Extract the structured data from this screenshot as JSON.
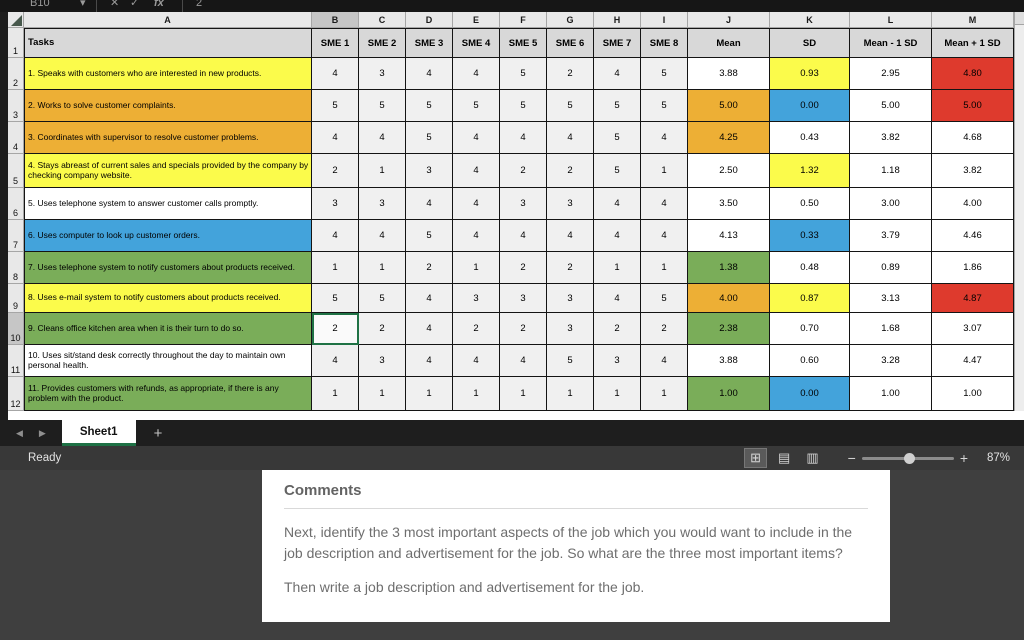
{
  "formula_bar": {
    "name_box": "B10",
    "caret_icon": "▾",
    "cancel_icon": "✕",
    "enter_icon": "✓",
    "fx_icon": "fx",
    "formula_value": "2"
  },
  "grid": {
    "column_letters": [
      "A",
      "B",
      "C",
      "D",
      "E",
      "F",
      "G",
      "H",
      "I",
      "J",
      "K",
      "L",
      "M"
    ],
    "active_column": "B",
    "active_row": "10",
    "header_row": {
      "row_num": "1",
      "tasks_label": "Tasks",
      "columns": [
        "SME 1",
        "SME 2",
        "SME 3",
        "SME 4",
        "SME 5",
        "SME 6",
        "SME 7",
        "SME 8",
        "Mean",
        "SD",
        "Mean - 1 SD",
        "Mean + 1 SD"
      ]
    },
    "rows": [
      {
        "row_num": "2",
        "task": "1. Speaks with customers who are interested in new products.",
        "task_bg": "yellow",
        "values": [
          "4",
          "3",
          "4",
          "4",
          "5",
          "2",
          "4",
          "5"
        ],
        "mean": "3.88",
        "sd": "0.93",
        "mean_minus_sd": "2.95",
        "mean_plus_sd": "4.80",
        "mean_bg": "",
        "sd_bg": "yellow",
        "plus_bg": "red"
      },
      {
        "row_num": "3",
        "task": "2. Works to solve customer complaints.",
        "task_bg": "orange",
        "values": [
          "5",
          "5",
          "5",
          "5",
          "5",
          "5",
          "5",
          "5"
        ],
        "mean": "5.00",
        "sd": "0.00",
        "mean_minus_sd": "5.00",
        "mean_plus_sd": "5.00",
        "mean_bg": "orange",
        "sd_bg": "blue",
        "plus_bg": "red"
      },
      {
        "row_num": "4",
        "task": "3. Coordinates with supervisor to resolve customer problems.",
        "task_bg": "orange",
        "values": [
          "4",
          "4",
          "5",
          "4",
          "4",
          "4",
          "5",
          "4"
        ],
        "mean": "4.25",
        "sd": "0.43",
        "mean_minus_sd": "3.82",
        "mean_plus_sd": "4.68",
        "mean_bg": "orange",
        "sd_bg": "",
        "plus_bg": ""
      },
      {
        "row_num": "5",
        "task": "4. Stays abreast of current sales and specials provided by the company by checking company website.",
        "task_bg": "yellow",
        "values": [
          "2",
          "1",
          "3",
          "4",
          "2",
          "2",
          "5",
          "1"
        ],
        "mean": "2.50",
        "sd": "1.32",
        "mean_minus_sd": "1.18",
        "mean_plus_sd": "3.82",
        "mean_bg": "",
        "sd_bg": "yellow",
        "plus_bg": ""
      },
      {
        "row_num": "6",
        "task": "5. Uses telephone system to answer customer calls promptly.",
        "task_bg": "",
        "values": [
          "3",
          "3",
          "4",
          "4",
          "3",
          "3",
          "4",
          "4"
        ],
        "mean": "3.50",
        "sd": "0.50",
        "mean_minus_sd": "3.00",
        "mean_plus_sd": "4.00",
        "mean_bg": "",
        "sd_bg": "",
        "plus_bg": ""
      },
      {
        "row_num": "7",
        "task": "6. Uses computer to look up customer orders.",
        "task_bg": "blue",
        "values": [
          "4",
          "4",
          "5",
          "4",
          "4",
          "4",
          "4",
          "4"
        ],
        "mean": "4.13",
        "sd": "0.33",
        "mean_minus_sd": "3.79",
        "mean_plus_sd": "4.46",
        "mean_bg": "",
        "sd_bg": "blue",
        "plus_bg": ""
      },
      {
        "row_num": "8",
        "task": "7. Uses telephone system to notify customers about products received.",
        "task_bg": "green",
        "values": [
          "1",
          "1",
          "2",
          "1",
          "2",
          "2",
          "1",
          "1"
        ],
        "mean": "1.38",
        "sd": "0.48",
        "mean_minus_sd": "0.89",
        "mean_plus_sd": "1.86",
        "mean_bg": "green",
        "sd_bg": "",
        "plus_bg": ""
      },
      {
        "row_num": "9",
        "task": "8. Uses e-mail system to notify customers about products received.",
        "task_bg": "yellow",
        "values": [
          "5",
          "5",
          "4",
          "3",
          "3",
          "3",
          "4",
          "5"
        ],
        "mean": "4.00",
        "sd": "0.87",
        "mean_minus_sd": "3.13",
        "mean_plus_sd": "4.87",
        "mean_bg": "orange",
        "sd_bg": "yellow",
        "plus_bg": "red"
      },
      {
        "row_num": "10",
        "task": "9. Cleans office kitchen area when it is their turn to do so.",
        "task_bg": "green",
        "values": [
          "2",
          "2",
          "4",
          "2",
          "2",
          "3",
          "2",
          "2"
        ],
        "mean": "2.38",
        "sd": "0.70",
        "mean_minus_sd": "1.68",
        "mean_plus_sd": "3.07",
        "mean_bg": "green",
        "sd_bg": "",
        "plus_bg": "",
        "selected_value_index": 0
      },
      {
        "row_num": "11",
        "task": "10. Uses sit/stand desk correctly throughout the day to maintain own personal health.",
        "task_bg": "",
        "values": [
          "4",
          "3",
          "4",
          "4",
          "4",
          "5",
          "3",
          "4"
        ],
        "mean": "3.88",
        "sd": "0.60",
        "mean_minus_sd": "3.28",
        "mean_plus_sd": "4.47",
        "mean_bg": "",
        "sd_bg": "",
        "plus_bg": ""
      },
      {
        "row_num": "12",
        "task": "11. Provides customers with refunds, as appropriate, if there is any problem with the product.",
        "task_bg": "green",
        "values": [
          "1",
          "1",
          "1",
          "1",
          "1",
          "1",
          "1",
          "1"
        ],
        "mean": "1.00",
        "sd": "0.00",
        "mean_minus_sd": "1.00",
        "mean_plus_sd": "1.00",
        "mean_bg": "green",
        "sd_bg": "blue",
        "plus_bg": ""
      }
    ]
  },
  "colors": {
    "yellow": "#fbfb4b",
    "orange": "#edaf35",
    "blue": "#43a3db",
    "green": "#7aad59",
    "red": "#de3a2d",
    "excel_green": "#1e7145"
  },
  "tabs": {
    "prev_icon": "◀",
    "next_icon": "▶",
    "sheet_name": "Sheet1",
    "add_label": "+"
  },
  "status_bar": {
    "ready": "Ready",
    "grid_view_icon": "⊞",
    "page_layout_icon": "▤",
    "page_break_icon": "▥",
    "zoom_out_label": "−",
    "zoom_in_label": "+",
    "zoom": "87%"
  },
  "comments": {
    "title": "Comments",
    "paragraph1": "Next, identify the 3 most important aspects of the job which you would want to include in the job description and advertisement for the job.  So what are the three most important items?",
    "paragraph2": "Then write a job description and advertisement for the job."
  }
}
